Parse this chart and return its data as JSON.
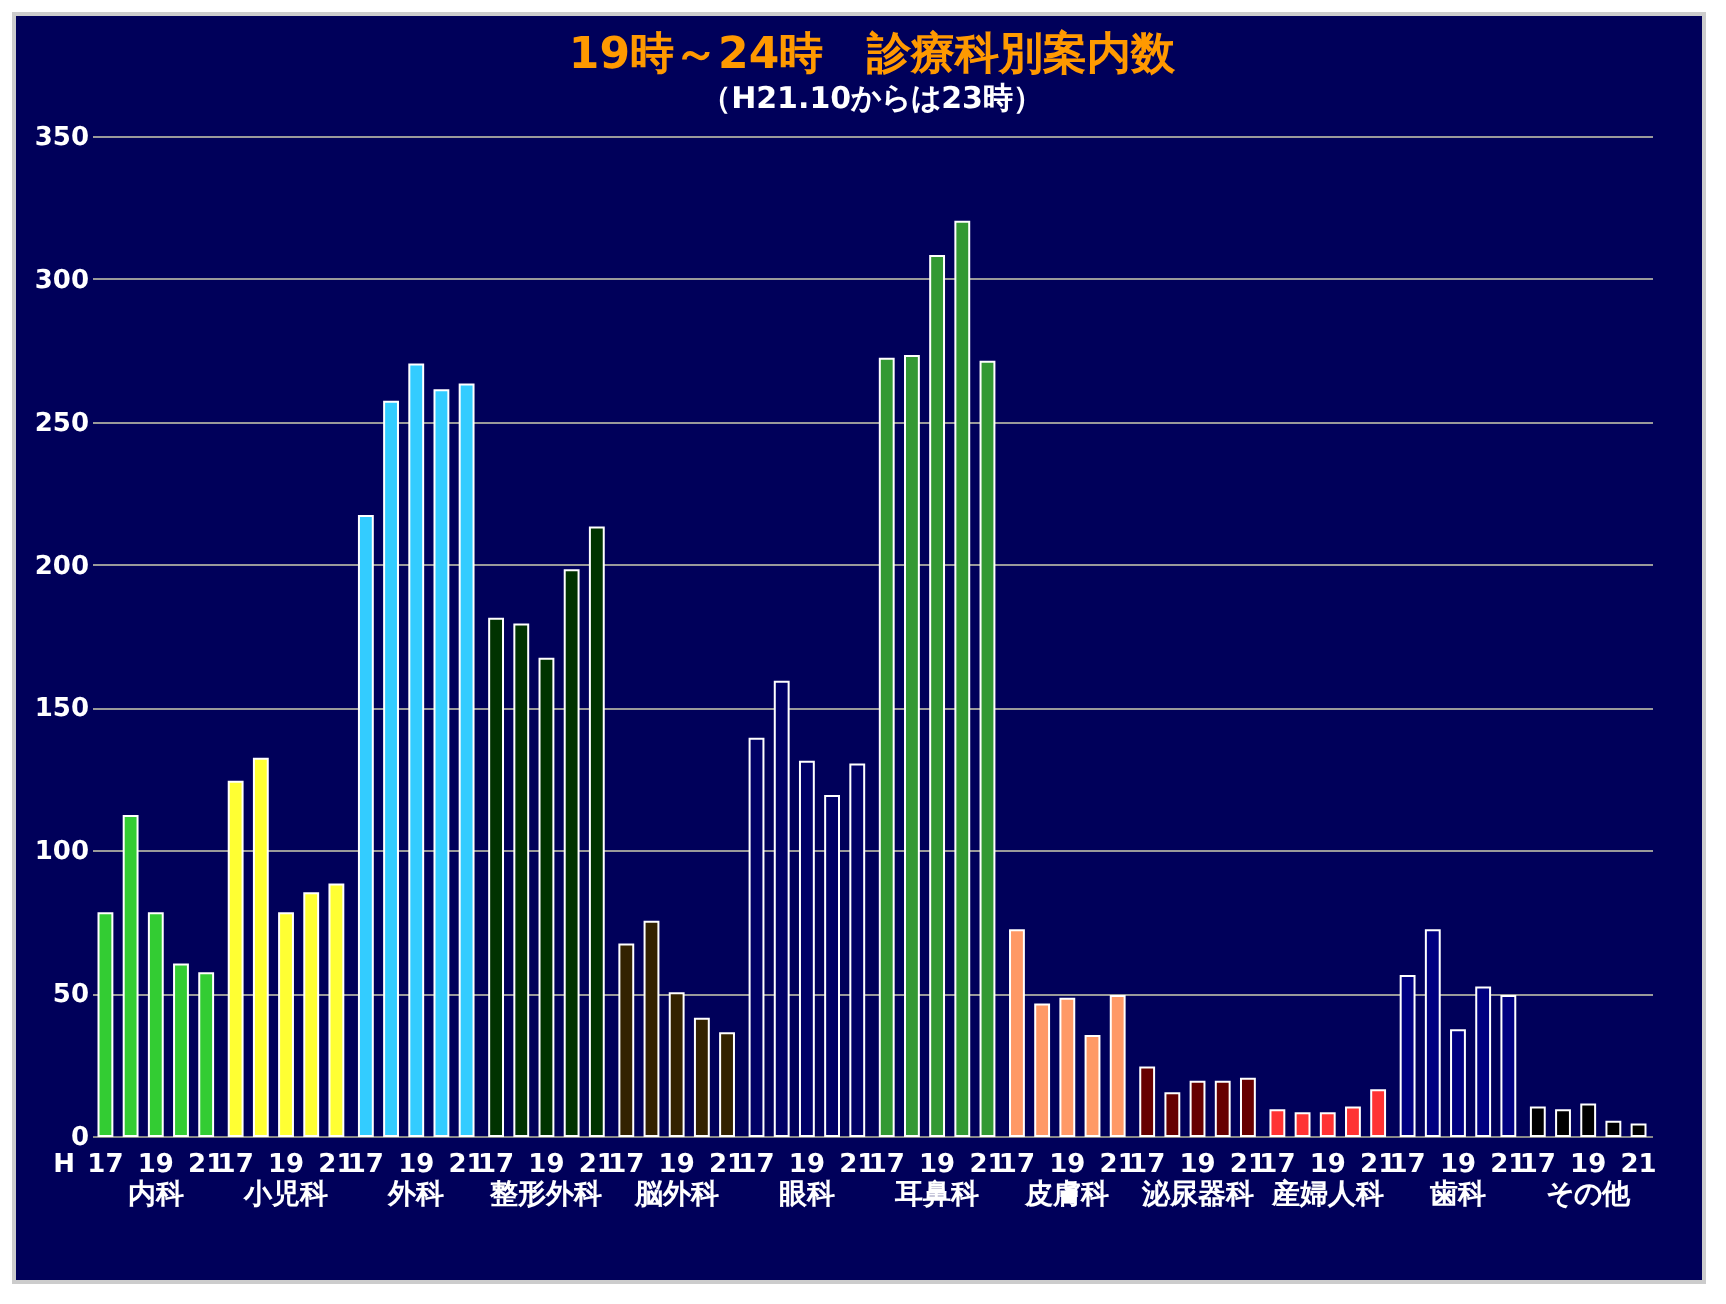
{
  "chart_data": {
    "type": "bar",
    "title": "19時～24時　診療科別案内数",
    "subtitle": "（H21.10からは23時）",
    "categories": [
      "内科",
      "小児科",
      "外科",
      "整形外科",
      "脳外科",
      "眼科",
      "耳鼻科",
      "皮膚科",
      "泌尿器科",
      "産婦人科",
      "歯科",
      "その他"
    ],
    "series": [
      {
        "colors": [
          "#33cc33",
          "#ffff33",
          "#33ccff",
          "#003300",
          "#332200",
          "#000066",
          "#339933",
          "#ff9966",
          "#660000",
          "#ff3333",
          "#000080",
          "#000000"
        ],
        "values": [
          78,
          124,
          217,
          181,
          67,
          139,
          272,
          72,
          24,
          9,
          56,
          10
        ]
      },
      {
        "colors": [
          "#33cc33",
          "#ffff33",
          "#33ccff",
          "#003300",
          "#332200",
          "#000066",
          "#339933",
          "#ff9966",
          "#660000",
          "#ff3333",
          "#000080",
          "#000000"
        ],
        "values": [
          112,
          132,
          257,
          179,
          75,
          159,
          273,
          46,
          15,
          8,
          72,
          9
        ]
      },
      {
        "colors": [
          "#33cc33",
          "#ffff33",
          "#33ccff",
          "#003300",
          "#332200",
          "#000066",
          "#339933",
          "#ff9966",
          "#660000",
          "#ff3333",
          "#000080",
          "#000000"
        ],
        "values": [
          78,
          78,
          270,
          167,
          50,
          131,
          308,
          48,
          19,
          8,
          37,
          11
        ]
      },
      {
        "colors": [
          "#33cc33",
          "#ffff33",
          "#33ccff",
          "#003300",
          "#332200",
          "#000066",
          "#339933",
          "#ff9966",
          "#660000",
          "#ff3333",
          "#000080",
          "#000000"
        ],
        "values": [
          60,
          85,
          261,
          198,
          41,
          119,
          320,
          35,
          19,
          10,
          52,
          5
        ]
      },
      {
        "colors": [
          "#33cc33",
          "#ffff33",
          "#33ccff",
          "#003300",
          "#332200",
          "#000066",
          "#339933",
          "#ff9966",
          "#660000",
          "#ff3333",
          "#000080",
          "#000000"
        ],
        "values": [
          57,
          88,
          263,
          213,
          36,
          130,
          271,
          49,
          20,
          16,
          49,
          4
        ]
      }
    ],
    "ylim": [
      0,
      350
    ],
    "yticks": [
      0,
      50,
      100,
      150,
      200,
      250,
      300,
      350
    ],
    "grid": "y",
    "annotations": [
      "H",
      "17",
      "19",
      "21",
      "17",
      "19",
      "21",
      "17",
      "19",
      "21",
      "17",
      "19",
      "21",
      "17",
      "19",
      "21",
      "17",
      "19",
      "21",
      "17",
      "19",
      "21",
      "17",
      "19",
      "21",
      "17",
      "19",
      "21",
      "17",
      "19",
      "21",
      "17",
      "19",
      "21",
      "17",
      "19",
      "21"
    ]
  }
}
